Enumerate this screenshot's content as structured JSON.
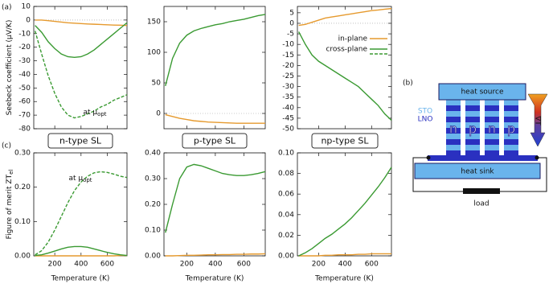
{
  "chart_data": [
    {
      "type": "line",
      "ylabel": "Seebeck coefficient (μV/K)",
      "annotation": "at μ",
      "annotation_sub": "opt",
      "zero_line": true,
      "show_xtick_labels": false,
      "x": [
        50,
        100,
        150,
        200,
        250,
        300,
        350,
        400,
        450,
        500,
        550,
        600,
        650,
        700,
        750
      ],
      "xlim": [
        40,
        750
      ],
      "xticks": [
        200,
        400,
        600
      ],
      "ylim": [
        -80,
        10
      ],
      "yticks": [
        -80,
        -70,
        -60,
        -50,
        -40,
        -30,
        -20,
        -10,
        0,
        10
      ],
      "series": [
        {
          "color": "#e69a2e",
          "values": [
            0,
            0,
            -0.5,
            -1,
            -1.5,
            -2,
            -2.3,
            -2.6,
            -2.9,
            -3.1,
            -3.3,
            -3.5,
            -3.7,
            -3.8,
            -4
          ]
        },
        {
          "color": "#3a9a32",
          "values": [
            -4,
            -9,
            -16,
            -21,
            -25,
            -27,
            -27.5,
            -27,
            -25,
            -22,
            -18,
            -14,
            -10,
            -6,
            -2
          ]
        },
        {
          "color": "#3a9a32",
          "dash": true,
          "values": [
            -8,
            -25,
            -41,
            -54,
            -64,
            -70,
            -72,
            -71,
            -69,
            -67,
            -64,
            -62,
            -59,
            -57,
            -55
          ]
        }
      ]
    },
    {
      "type": "line",
      "zero_line": true,
      "show_xtick_labels": false,
      "x": [
        50,
        100,
        150,
        200,
        250,
        300,
        350,
        400,
        450,
        500,
        550,
        600,
        650,
        700,
        750
      ],
      "xlim": [
        40,
        750
      ],
      "xticks": [
        200,
        400,
        600
      ],
      "ylim": [
        -25,
        175
      ],
      "yticks": [
        0,
        50,
        100,
        150
      ],
      "series": [
        {
          "color": "#e69a2e",
          "values": [
            -2,
            -5,
            -8,
            -10,
            -12,
            -13,
            -14,
            -14.5,
            -15,
            -15.5,
            -16,
            -16,
            -16,
            -16,
            -16
          ]
        },
        {
          "color": "#3a9a32",
          "values": [
            45,
            90,
            115,
            128,
            135,
            139,
            142,
            145,
            147,
            150,
            152,
            154,
            157,
            160,
            162
          ]
        }
      ]
    },
    {
      "type": "line",
      "zero_line": true,
      "show_xtick_labels": false,
      "legend": "upper right",
      "legend_dash": true,
      "x": [
        50,
        100,
        150,
        200,
        250,
        300,
        350,
        400,
        450,
        500,
        550,
        600,
        650,
        700,
        750
      ],
      "xlim": [
        40,
        750
      ],
      "xticks": [
        200,
        400,
        600
      ],
      "ylim": [
        -50,
        8
      ],
      "yticks": [
        -50,
        -45,
        -40,
        -35,
        -30,
        -25,
        -20,
        -15,
        -10,
        -5,
        0,
        5
      ],
      "series": [
        {
          "name": "in-plane",
          "color": "#e69a2e",
          "values": [
            -1,
            -0.5,
            0.5,
            1.5,
            2.5,
            3,
            3.5,
            4,
            4.5,
            5,
            5.5,
            6,
            6.3,
            6.7,
            7
          ]
        },
        {
          "name": "cross-plane",
          "color": "#3a9a32",
          "values": [
            -4,
            -10,
            -15,
            -18,
            -20,
            -22,
            -24,
            -26,
            -28,
            -30,
            -33,
            -36,
            -39,
            -43,
            -46
          ]
        }
      ]
    },
    {
      "type": "line",
      "ylabel": "Figure of merit ZT",
      "ylabel_sub": "el",
      "xlabel": "Temperature (K)",
      "annotation": "at μ",
      "annotation_sub": "opt",
      "x": [
        50,
        100,
        150,
        200,
        250,
        300,
        350,
        400,
        450,
        500,
        550,
        600,
        650,
        700,
        750
      ],
      "xlim": [
        40,
        750
      ],
      "xticks": [
        200,
        400,
        600
      ],
      "ylim": [
        0,
        0.3
      ],
      "yticks": [
        {
          "value": 0,
          "label": "0.00"
        },
        {
          "value": 0.1,
          "label": "0.10"
        },
        {
          "value": 0.2,
          "label": "0.20"
        },
        {
          "value": 0.3,
          "label": "0.30"
        }
      ],
      "series": [
        {
          "color": "#e69a2e",
          "values": [
            0,
            0,
            0,
            0,
            0,
            0,
            0,
            0,
            0,
            0,
            0,
            0,
            0,
            0.001,
            0.001
          ]
        },
        {
          "color": "#3a9a32",
          "values": [
            0.001,
            0.003,
            0.008,
            0.014,
            0.02,
            0.025,
            0.027,
            0.027,
            0.025,
            0.02,
            0.015,
            0.01,
            0.006,
            0.003,
            0.001
          ]
        },
        {
          "color": "#3a9a32",
          "dash": true,
          "values": [
            0.003,
            0.015,
            0.04,
            0.075,
            0.115,
            0.155,
            0.19,
            0.215,
            0.232,
            0.242,
            0.245,
            0.243,
            0.238,
            0.232,
            0.228
          ]
        }
      ]
    },
    {
      "type": "line",
      "xlabel": "Temperature (K)",
      "x": [
        50,
        100,
        150,
        200,
        250,
        300,
        350,
        400,
        450,
        500,
        550,
        600,
        650,
        700,
        750
      ],
      "xlim": [
        40,
        750
      ],
      "xticks": [
        200,
        400,
        600
      ],
      "ylim": [
        0,
        0.4
      ],
      "yticks": [
        {
          "value": 0,
          "label": "0.00"
        },
        {
          "value": 0.1,
          "label": "0.10"
        },
        {
          "value": 0.2,
          "label": "0.20"
        },
        {
          "value": 0.3,
          "label": "0.30"
        },
        {
          "value": 0.4,
          "label": "0.40"
        }
      ],
      "series": [
        {
          "color": "#e69a2e",
          "values": [
            0,
            0,
            0.001,
            0.002,
            0.002,
            0.003,
            0.004,
            0.004,
            0.005,
            0.005,
            0.006,
            0.006,
            0.007,
            0.007,
            0.008
          ]
        },
        {
          "color": "#3a9a32",
          "values": [
            0.09,
            0.2,
            0.3,
            0.345,
            0.355,
            0.35,
            0.34,
            0.33,
            0.32,
            0.315,
            0.312,
            0.312,
            0.315,
            0.32,
            0.327
          ]
        }
      ]
    },
    {
      "type": "line",
      "xlabel": "Temperature (K)",
      "x": [
        50,
        100,
        150,
        200,
        250,
        300,
        350,
        400,
        450,
        500,
        550,
        600,
        650,
        700,
        750
      ],
      "xlim": [
        40,
        750
      ],
      "xticks": [
        200,
        400,
        600
      ],
      "ylim": [
        0,
        0.1
      ],
      "yticks": [
        {
          "value": 0,
          "label": "0.00"
        },
        {
          "value": 0.02,
          "label": "0.02"
        },
        {
          "value": 0.04,
          "label": "0.04"
        },
        {
          "value": 0.06,
          "label": "0.06"
        },
        {
          "value": 0.08,
          "label": "0.08"
        },
        {
          "value": 0.1,
          "label": "0.10"
        }
      ],
      "series": [
        {
          "color": "#e69a2e",
          "values": [
            0,
            0,
            0,
            0,
            0.0005,
            0.0005,
            0.001,
            0.001,
            0.001,
            0.0015,
            0.0015,
            0.002,
            0.002,
            0.002,
            0.002
          ]
        },
        {
          "color": "#3a9a32",
          "values": [
            0,
            0.003,
            0.007,
            0.012,
            0.017,
            0.021,
            0.026,
            0.031,
            0.037,
            0.044,
            0.051,
            0.059,
            0.067,
            0.076,
            0.086
          ]
        }
      ]
    }
  ],
  "figure": {
    "panel_labels": [
      "(a)",
      "(c)",
      "(b)"
    ],
    "group_labels": [
      "n-type SL",
      "p-type SL",
      "np-type SL"
    ],
    "diagram": {
      "top": "heat source",
      "bottom": "heat sink",
      "sto": "STO",
      "lno": "LNO",
      "legs": [
        "n",
        "p",
        "n",
        "p"
      ],
      "load": "load",
      "gradient": "∇T"
    }
  }
}
